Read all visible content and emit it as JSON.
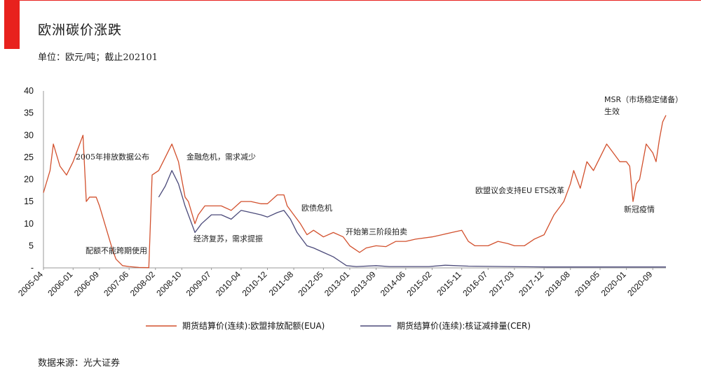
{
  "header": {
    "title": "欧洲碳价涨跌",
    "unit_note": "单位：欧元/吨；截止202101",
    "source": "数据来源：光大证券"
  },
  "colors": {
    "accent": "#e8211d",
    "eua": "#d2502d",
    "cer": "#4b4a7a"
  },
  "chart_data": {
    "type": "line",
    "title": "欧洲碳价涨跌",
    "ylabel": "",
    "xlabel": "",
    "ylim": [
      0,
      40
    ],
    "yticks": [
      0,
      5,
      10,
      15,
      20,
      25,
      30,
      35,
      40
    ],
    "ytick_labels": [
      "-",
      "5",
      "10",
      "15",
      "20",
      "25",
      "30",
      "35",
      "40"
    ],
    "x_range": [
      "2005-04",
      "2021-01"
    ],
    "xtick_labels": [
      "2005-04",
      "2006-01",
      "2006-09",
      "2007-06",
      "2008-02",
      "2008-10",
      "2009-07",
      "2010-04",
      "2010-12",
      "2011-08",
      "2012-05",
      "2013-01",
      "2013-09",
      "2014-06",
      "2015-02",
      "2015-11",
      "2016-07",
      "2017-03",
      "2017-12",
      "2018-08",
      "2019-05",
      "2020-01",
      "2020-09"
    ],
    "legend_position": "bottom",
    "grid": false,
    "series": [
      {
        "name": "期货结算价(连续):欧盟排放配额(EUA)",
        "color": "#d2502d",
        "points": [
          [
            "2005-04",
            17
          ],
          [
            "2005-06",
            22
          ],
          [
            "2005-07",
            28
          ],
          [
            "2005-09",
            23
          ],
          [
            "2005-11",
            21
          ],
          [
            "2006-01",
            24
          ],
          [
            "2006-02",
            26
          ],
          [
            "2006-03",
            28
          ],
          [
            "2006-04",
            30
          ],
          [
            "2006-05",
            15
          ],
          [
            "2006-06",
            16
          ],
          [
            "2006-08",
            16
          ],
          [
            "2006-09",
            14
          ],
          [
            "2006-11",
            9
          ],
          [
            "2007-01",
            4
          ],
          [
            "2007-02",
            2
          ],
          [
            "2007-04",
            0.5
          ],
          [
            "2007-06",
            0.3
          ],
          [
            "2007-09",
            0.1
          ],
          [
            "2007-12",
            0.05
          ],
          [
            "2008-01",
            21
          ],
          [
            "2008-03",
            22
          ],
          [
            "2008-05",
            25
          ],
          [
            "2008-07",
            28
          ],
          [
            "2008-09",
            24
          ],
          [
            "2008-11",
            16
          ],
          [
            "2008-12",
            15
          ],
          [
            "2009-02",
            10
          ],
          [
            "2009-03",
            12
          ],
          [
            "2009-05",
            14
          ],
          [
            "2009-07",
            14
          ],
          [
            "2009-10",
            14
          ],
          [
            "2010-01",
            13
          ],
          [
            "2010-04",
            15
          ],
          [
            "2010-07",
            15
          ],
          [
            "2010-10",
            14.5
          ],
          [
            "2010-12",
            14.5
          ],
          [
            "2011-03",
            16.5
          ],
          [
            "2011-05",
            16.5
          ],
          [
            "2011-06",
            14
          ],
          [
            "2011-08",
            12
          ],
          [
            "2011-10",
            10
          ],
          [
            "2011-12",
            7.5
          ],
          [
            "2012-02",
            8.5
          ],
          [
            "2012-05",
            7
          ],
          [
            "2012-08",
            8
          ],
          [
            "2012-11",
            7
          ],
          [
            "2013-01",
            5
          ],
          [
            "2013-04",
            3.5
          ],
          [
            "2013-06",
            4.5
          ],
          [
            "2013-09",
            5
          ],
          [
            "2013-12",
            4.8
          ],
          [
            "2014-03",
            6
          ],
          [
            "2014-06",
            6
          ],
          [
            "2014-09",
            6.5
          ],
          [
            "2015-02",
            7
          ],
          [
            "2015-05",
            7.5
          ],
          [
            "2015-08",
            8
          ],
          [
            "2015-11",
            8.5
          ],
          [
            "2016-01",
            6
          ],
          [
            "2016-03",
            5
          ],
          [
            "2016-07",
            5
          ],
          [
            "2016-10",
            6
          ],
          [
            "2017-01",
            5.5
          ],
          [
            "2017-03",
            5
          ],
          [
            "2017-06",
            5
          ],
          [
            "2017-09",
            6.5
          ],
          [
            "2017-12",
            7.5
          ],
          [
            "2018-03",
            12
          ],
          [
            "2018-06",
            15
          ],
          [
            "2018-08",
            19
          ],
          [
            "2018-09",
            22
          ],
          [
            "2018-11",
            18
          ],
          [
            "2019-01",
            24
          ],
          [
            "2019-03",
            22
          ],
          [
            "2019-05",
            25
          ],
          [
            "2019-07",
            28
          ],
          [
            "2019-09",
            26
          ],
          [
            "2019-11",
            24
          ],
          [
            "2020-01",
            24
          ],
          [
            "2020-02",
            23
          ],
          [
            "2020-03",
            15
          ],
          [
            "2020-04",
            19
          ],
          [
            "2020-05",
            20
          ],
          [
            "2020-06",
            24
          ],
          [
            "2020-07",
            28
          ],
          [
            "2020-09",
            26
          ],
          [
            "2020-10",
            24
          ],
          [
            "2020-11",
            29
          ],
          [
            "2020-12",
            33
          ],
          [
            "2021-01",
            34.5
          ]
        ]
      },
      {
        "name": "期货结算价(连续):核证减排量(CER)",
        "color": "#4b4a7a",
        "points": [
          [
            "2008-03",
            16
          ],
          [
            "2008-05",
            18.5
          ],
          [
            "2008-07",
            22
          ],
          [
            "2008-09",
            19
          ],
          [
            "2008-11",
            14
          ],
          [
            "2009-02",
            8
          ],
          [
            "2009-04",
            10
          ],
          [
            "2009-07",
            12
          ],
          [
            "2009-10",
            12
          ],
          [
            "2010-01",
            11
          ],
          [
            "2010-04",
            13
          ],
          [
            "2010-07",
            12.5
          ],
          [
            "2010-10",
            12
          ],
          [
            "2010-12",
            11.5
          ],
          [
            "2011-03",
            12.5
          ],
          [
            "2011-05",
            13
          ],
          [
            "2011-07",
            11
          ],
          [
            "2011-09",
            8
          ],
          [
            "2011-12",
            5
          ],
          [
            "2012-02",
            4.5
          ],
          [
            "2012-05",
            3.5
          ],
          [
            "2012-08",
            2.5
          ],
          [
            "2012-10",
            1.5
          ],
          [
            "2012-12",
            0.5
          ],
          [
            "2013-03",
            0.3
          ],
          [
            "2013-09",
            0.5
          ],
          [
            "2014-01",
            0.3
          ],
          [
            "2015-01",
            0.3
          ],
          [
            "2015-06",
            0.6
          ],
          [
            "2016-01",
            0.4
          ],
          [
            "2017-01",
            0.3
          ],
          [
            "2018-01",
            0.2
          ],
          [
            "2019-01",
            0.2
          ],
          [
            "2020-01",
            0.2
          ],
          [
            "2021-01",
            0.2
          ]
        ]
      }
    ],
    "annotations": [
      {
        "text": "2005年排放数据公布"
      },
      {
        "text": "配额不能跨期使用"
      },
      {
        "text": "金融危机，需求减少"
      },
      {
        "text": "经济复苏，需求提振"
      },
      {
        "text": "欧债危机"
      },
      {
        "text": "开始第三阶段拍卖"
      },
      {
        "text": "欧盟议会支持EU ETS改革"
      },
      {
        "text": "MSR（市场稳定储备）"
      },
      {
        "text": "生效"
      },
      {
        "text": "新冠疫情"
      }
    ]
  }
}
